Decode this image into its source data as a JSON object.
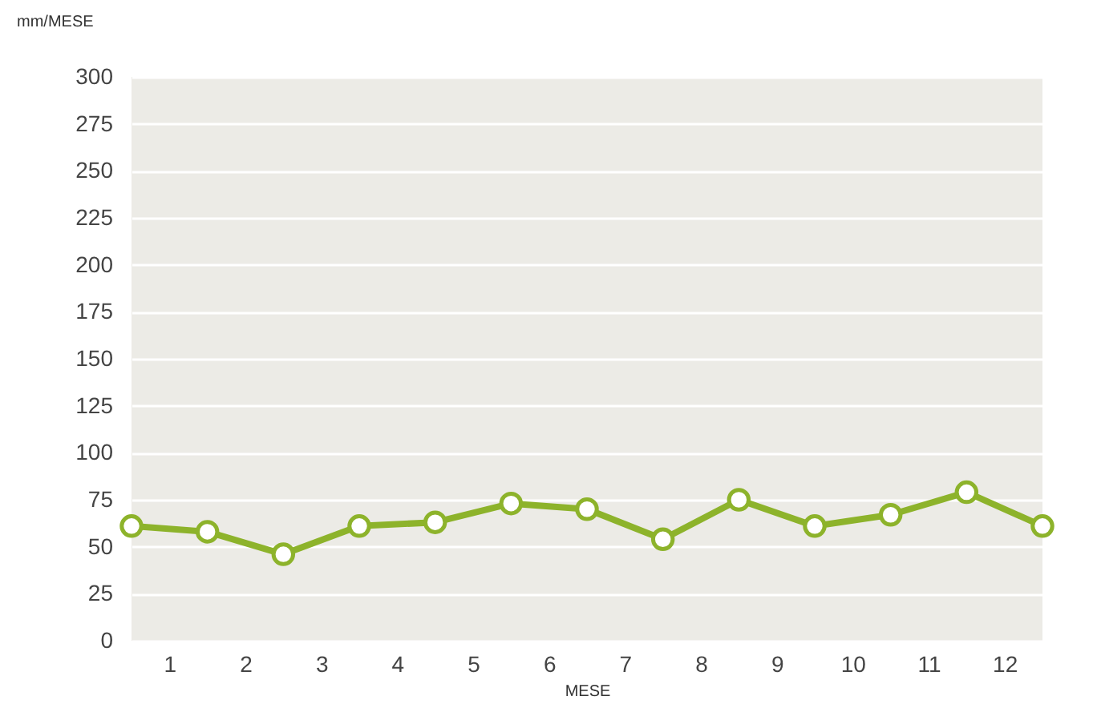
{
  "chart_data": {
    "type": "line",
    "ylabel": "mm/MESE",
    "xlabel": "MESE",
    "x": [
      0.5,
      1.5,
      2.5,
      3.5,
      4.5,
      5.5,
      6.5,
      7.5,
      8.5,
      9.5,
      10.5,
      11.5,
      12.5
    ],
    "series": [
      {
        "color": "#8db32b",
        "values": [
          61,
          58,
          46,
          61,
          63,
          73,
          70,
          54,
          75,
          61,
          67,
          79,
          61
        ]
      }
    ],
    "xlim": [
      0.5,
      12.5
    ],
    "xticks": [
      1,
      2,
      3,
      4,
      5,
      6,
      7,
      8,
      9,
      10,
      11,
      12
    ],
    "ylim": [
      0,
      300
    ],
    "yticks": [
      0,
      25,
      50,
      75,
      100,
      125,
      150,
      175,
      200,
      225,
      250,
      275,
      300
    ],
    "grid": "y",
    "marker": "circle",
    "line_style": "solid"
  }
}
